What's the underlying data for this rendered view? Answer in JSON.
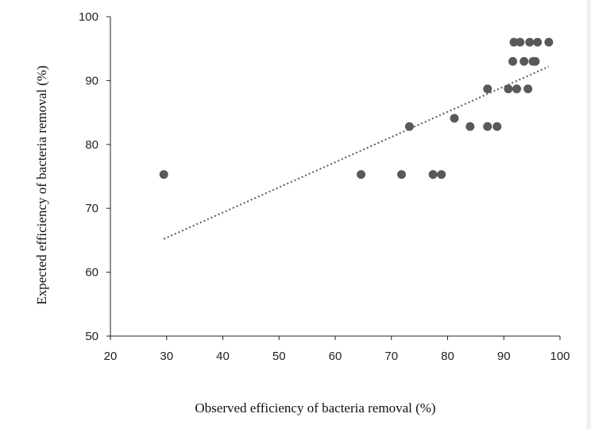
{
  "chart_data": {
    "type": "scatter",
    "xlabel": "Observed efficiency of bacteria removal  (%)",
    "ylabel": "Expected efficiency of bacteria removal  (%)",
    "xlim": [
      20,
      100
    ],
    "ylim": [
      50,
      100
    ],
    "xticks": [
      20,
      30,
      40,
      50,
      60,
      70,
      80,
      90,
      100
    ],
    "yticks": [
      50,
      60,
      70,
      80,
      90,
      100
    ],
    "grid": false,
    "marker_color": "#595959",
    "trendline": {
      "style": "dotted",
      "color": "#595959",
      "x": [
        29.5,
        98
      ],
      "y": [
        65.2,
        92.2
      ]
    },
    "points": [
      {
        "x": 29.5,
        "y": 75.3
      },
      {
        "x": 64.6,
        "y": 75.3
      },
      {
        "x": 71.8,
        "y": 75.3
      },
      {
        "x": 77.4,
        "y": 75.3
      },
      {
        "x": 78.9,
        "y": 75.3
      },
      {
        "x": 73.2,
        "y": 82.8
      },
      {
        "x": 84.0,
        "y": 82.8
      },
      {
        "x": 87.1,
        "y": 82.8
      },
      {
        "x": 88.8,
        "y": 82.8
      },
      {
        "x": 81.2,
        "y": 84.1
      },
      {
        "x": 87.1,
        "y": 88.7
      },
      {
        "x": 90.8,
        "y": 88.7
      },
      {
        "x": 92.3,
        "y": 88.7
      },
      {
        "x": 94.3,
        "y": 88.7
      },
      {
        "x": 91.6,
        "y": 93.0
      },
      {
        "x": 93.6,
        "y": 93.0
      },
      {
        "x": 95.2,
        "y": 93.0
      },
      {
        "x": 95.6,
        "y": 93.0
      },
      {
        "x": 91.8,
        "y": 96.0
      },
      {
        "x": 92.9,
        "y": 96.0
      },
      {
        "x": 94.6,
        "y": 96.0
      },
      {
        "x": 96.0,
        "y": 96.0
      },
      {
        "x": 98.0,
        "y": 96.0
      }
    ]
  }
}
